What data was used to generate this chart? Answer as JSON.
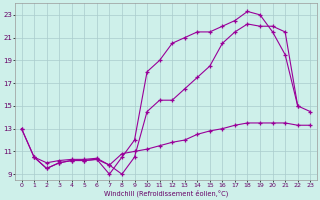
{
  "xlabel": "Windchill (Refroidissement éolien,°C)",
  "bg_color": "#cef0ea",
  "grid_color": "#aacccc",
  "line_color": "#990099",
  "xlim": [
    -0.5,
    23.5
  ],
  "ylim": [
    8.5,
    24.0
  ],
  "xticks": [
    0,
    1,
    2,
    3,
    4,
    5,
    6,
    7,
    8,
    9,
    10,
    11,
    12,
    13,
    14,
    15,
    16,
    17,
    18,
    19,
    20,
    21,
    22,
    23
  ],
  "yticks": [
    9,
    11,
    13,
    15,
    17,
    19,
    21,
    23
  ],
  "curve1_x": [
    0,
    1,
    2,
    3,
    4,
    5,
    6,
    7,
    8,
    9,
    10,
    11,
    12,
    13,
    14,
    15,
    16,
    17,
    18,
    19,
    20,
    21,
    22
  ],
  "curve1_y": [
    13.0,
    10.5,
    9.5,
    10.0,
    10.2,
    10.2,
    10.3,
    9.0,
    10.5,
    12.0,
    18.0,
    19.0,
    20.5,
    21.0,
    21.5,
    21.5,
    22.0,
    22.5,
    23.3,
    23.0,
    21.5,
    19.5,
    15.0
  ],
  "curve2_x": [
    0,
    1,
    2,
    3,
    4,
    5,
    6,
    7,
    8,
    9,
    10,
    11,
    12,
    13,
    14,
    15,
    16,
    17,
    18,
    19,
    20,
    21,
    22,
    23
  ],
  "curve2_y": [
    13.0,
    10.5,
    9.5,
    10.0,
    10.2,
    10.2,
    10.3,
    9.8,
    9.0,
    10.5,
    14.5,
    15.5,
    15.5,
    16.5,
    17.5,
    18.5,
    20.5,
    21.5,
    22.2,
    22.0,
    22.0,
    21.5,
    15.0,
    14.5
  ],
  "curve3_x": [
    1,
    2,
    3,
    4,
    5,
    6,
    7,
    8,
    9,
    10,
    11,
    12,
    13,
    14,
    15,
    16,
    17,
    18,
    19,
    20,
    21,
    22,
    23
  ],
  "curve3_y": [
    10.5,
    10.0,
    10.2,
    10.3,
    10.3,
    10.4,
    9.8,
    10.8,
    11.0,
    11.2,
    11.5,
    11.8,
    12.0,
    12.5,
    12.8,
    13.0,
    13.3,
    13.5,
    13.5,
    13.5,
    13.5,
    13.3,
    13.3
  ]
}
